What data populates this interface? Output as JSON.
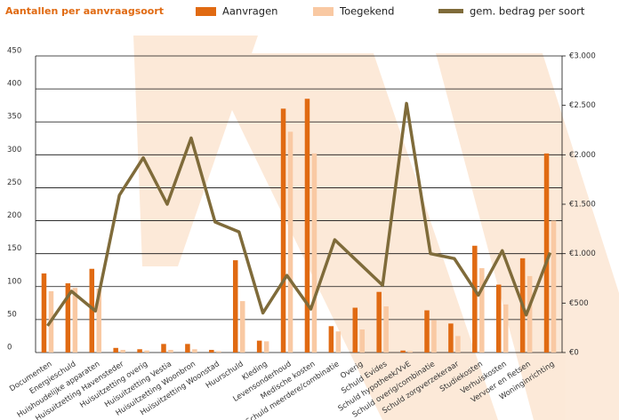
{
  "chart_data": {
    "type": "bar-line",
    "title": "Aantallen per aanvraagsoort",
    "categories": [
      "Documenten",
      "Energieschuld",
      "Huishoudelijke apparaten",
      "Huisuitzetting Havensteder",
      "Huisuitzetting overig",
      "Huisuitzetting Vestia",
      "Huisuitzetting Woonbron",
      "Huisuitzetting Woonstad",
      "Huurschuld",
      "Kleding",
      "Levensonderhoud",
      "Medische kosten",
      "Schuld meerdere/combinatie",
      "Overig",
      "Schuld Evides",
      "Schuld hypotheek/VvE",
      "Schuld overig/combinatie",
      "Schuld zorgverzekeraar",
      "Studiekosten",
      "Verhuiskosten",
      "Vervoer en fietsen",
      "Woninginrichting"
    ],
    "series": [
      {
        "name": "Aanvragen",
        "color": "#e06a12",
        "kind": "bar",
        "values": [
          120,
          105,
          127,
          7,
          5,
          13,
          13,
          4,
          140,
          18,
          370,
          385,
          40,
          68,
          92,
          3,
          64,
          44,
          162,
          103,
          143,
          302
        ]
      },
      {
        "name": "Toegekend",
        "color": "#f9c9a3",
        "kind": "bar",
        "values": [
          93,
          98,
          97,
          4,
          3,
          4,
          5,
          2,
          78,
          17,
          335,
          302,
          32,
          35,
          70,
          2,
          49,
          25,
          128,
          73,
          116,
          200
        ]
      },
      {
        "name": "gem. bedrag per soort",
        "color": "#7f6b3a",
        "kind": "line",
        "axis": "y2",
        "values": [
          270,
          620,
          420,
          1590,
          1970,
          1500,
          2170,
          1320,
          1220,
          400,
          780,
          440,
          1140,
          910,
          680,
          2520,
          1000,
          950,
          580,
          1030,
          380,
          1010
        ]
      }
    ],
    "ylim": [
      0,
      450
    ],
    "yticks": [
      0,
      50,
      100,
      150,
      200,
      250,
      300,
      350,
      400,
      450
    ],
    "y2lim": [
      0,
      3000
    ],
    "y2ticks": [
      {
        "value": 0,
        "label": "€0"
      },
      {
        "value": 500,
        "label": "€500"
      },
      {
        "value": 1000,
        "label": "€1.000"
      },
      {
        "value": 1500,
        "label": "€1.500"
      },
      {
        "value": 2000,
        "label": "€2.000"
      },
      {
        "value": 2500,
        "label": "€2.500"
      },
      {
        "value": 3000,
        "label": "€3.000"
      }
    ],
    "grid": true
  }
}
